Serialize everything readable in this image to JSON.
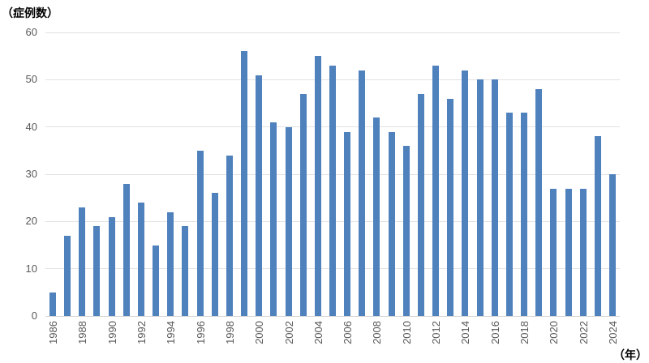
{
  "chart_data": {
    "type": "bar",
    "title": "（症例数）",
    "xlabel": "（年）",
    "ylabel": "症例数",
    "categories": [
      "1986",
      "1987",
      "1988",
      "1989",
      "1990",
      "1991",
      "1992",
      "1993",
      "1994",
      "1995",
      "1996",
      "1997",
      "1998",
      "1999",
      "2000",
      "2001",
      "2002",
      "2003",
      "2004",
      "2005",
      "2006",
      "2007",
      "2008",
      "2009",
      "2010",
      "2011",
      "2012",
      "2013",
      "2014",
      "2015",
      "2016",
      "2017",
      "2018",
      "2019",
      "2020",
      "2021",
      "2022",
      "2023",
      "2024"
    ],
    "values": [
      5,
      17,
      23,
      19,
      21,
      28,
      24,
      15,
      22,
      19,
      35,
      26,
      34,
      56,
      51,
      41,
      40,
      47,
      55,
      53,
      39,
      52,
      42,
      39,
      36,
      47,
      53,
      46,
      52,
      50,
      50,
      43,
      43,
      48,
      27,
      27,
      27,
      38,
      30
    ],
    "ylim": [
      0,
      60
    ],
    "yticks": [
      0,
      10,
      20,
      30,
      40,
      50,
      60
    ],
    "xtick_every": 2,
    "grid": true,
    "legend": "none",
    "colors": {
      "bar": "#4f81bd",
      "grid": "#e2e2e2",
      "axis_line": "#d6d6d6",
      "tick_label": "#595959",
      "title": "#000000"
    }
  }
}
